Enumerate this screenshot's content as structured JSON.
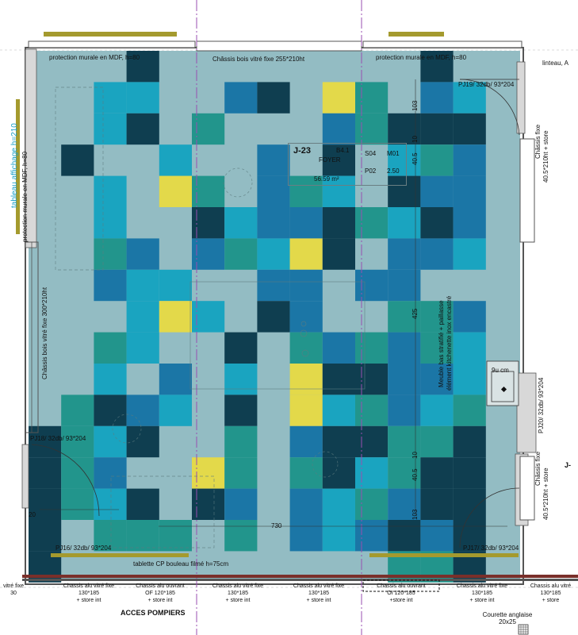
{
  "colors": {
    "base": "#93bcc3",
    "navy": "#0f3e50",
    "teal": "#22958c",
    "blue": "#1b76a6",
    "cyan": "#1aa4c0",
    "yellow": "#e3d94a",
    "wall": "#555555",
    "olive": "#a49a2e",
    "purple": "#9a4fb0",
    "cyan_text": "#1aa0c8"
  },
  "tile_rows": [
    "000n00000000n0",
    "00cc00bn0yt0bc",
    "00cn0t000btnnn",
    "0n00c00b0n0ctb",
    "00c0yt0btc0nbb",
    "00c00ncbbntcnb",
    "00tb0btcyn0bbc",
    "00bcc00bb0bb00",
    "000cyc0nb00ttb",
    "00tc00n0tbtbtc",
    "00c0b0c0ynnbbc",
    "0tnbc0n0yctbct",
    "ntcn00t0bnnttn",
    "ntb00yt0tnctnn",
    "ntcn0nb0bctbnn",
    "n0ttt0t0bcbnbn",
    "n0000000000ttn"
  ],
  "top_labels": {
    "left_protection": "protection murale en MDF, h=80",
    "center_chassis": "Châssis bois vitré fixe 255*210ht",
    "right_protection": "protection murale en MDF, h=80",
    "linteau": "linteau, A"
  },
  "room": {
    "number": "J-23",
    "code": "B4.1",
    "name": "FOYER",
    "area": "56.59 m²",
    "cells": [
      "S04",
      "M01",
      "P02",
      "2.50"
    ]
  },
  "left_wall": {
    "tableau": "tableau affichage h=210",
    "protection": "protection murale en MDF, h=80",
    "chassis": "Châssis bois vitré fixe 300*210ht",
    "pj18": "PJ18/ 32db/ 93*204",
    "dim20": "20"
  },
  "right_wall": {
    "pj19": "PJ19/ 32db/ 93*204",
    "chassis_top": "Châssis fixe",
    "chassis_top_dim": "40.5*210ht + store",
    "meuble": "Meuble bas stratifié + paillasse",
    "element": "élément kitchenette inox encastré",
    "sink": "9u cm",
    "pj20": "PJ20/ 32db/ 93*204",
    "chassis_bot": "Châssis fixe",
    "chassis_bot_dim": "40.5*210ht + store",
    "j_label": "J-"
  },
  "dimensions": {
    "d103_top": "103",
    "d10": "10",
    "d405": "40.5",
    "d425": "425",
    "d10b": "10",
    "d405b": "40.5",
    "d103_bot": "103",
    "d20": "20",
    "d730": "730"
  },
  "bottom_interior": {
    "pj_left": "PJ16/ 32db/ 93*204",
    "pj_right": "PJ17/ 32db/ 93*204",
    "tablette": "tablette CP bouleau filmé    h=75cm"
  },
  "bottom_labels": [
    {
      "l1": "vitré fixe",
      "l2": "30",
      "l3": ""
    },
    {
      "l1": "Chassis alu vitré fixe",
      "l2": "130*185",
      "l3": "+ store int"
    },
    {
      "l1": "Chassis alu ouvrant",
      "l2": "OF 120*185",
      "l3": "+ store int"
    },
    {
      "l1": "Chassis alu vitré fixe",
      "l2": "130*185",
      "l3": "+ store int"
    },
    {
      "l1": "Chassis alu vitré fixe",
      "l2": "130*185",
      "l3": "+ store int"
    },
    {
      "l1": "Chassis alu ouvrant",
      "l2": "OI  120*185",
      "l3": "+store int"
    },
    {
      "l1": "Chassis alu vitré fixe",
      "l2": "130*185",
      "l3": "+ store int"
    },
    {
      "l1": "Chassis alu vitré",
      "l2": "130*185",
      "l3": "+ store"
    }
  ],
  "acces": "ACCES POMPIERS",
  "courette": {
    "title": "Courette anglaise",
    "size": "20x25"
  }
}
